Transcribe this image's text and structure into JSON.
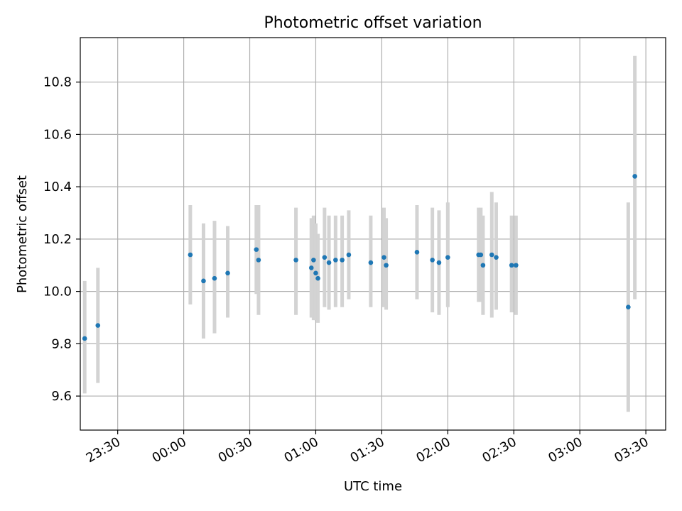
{
  "chart_data": {
    "type": "scatter",
    "title": "Photometric offset variation",
    "xlabel": "UTC time",
    "ylabel": "Photometric offset",
    "grid": true,
    "legend": "none",
    "x_unit": "time of day (HH:MM, UTC), crossing midnight",
    "xlim": [
      "23:13",
      "03:39"
    ],
    "ylim": [
      9.47,
      10.97
    ],
    "x_ticks": [
      "23:30",
      "00:00",
      "00:30",
      "01:00",
      "01:30",
      "02:00",
      "02:30",
      "03:00",
      "03:30"
    ],
    "y_ticks": [
      9.6,
      9.8,
      10.0,
      10.2,
      10.4,
      10.6,
      10.8
    ],
    "y_tick_labels": [
      "9.6",
      "9.8",
      "10.0",
      "10.2",
      "10.4",
      "10.6",
      "10.8"
    ],
    "colors": {
      "point": "#1f77b4",
      "errorbar": "#d3d3d3",
      "grid": "#b0b0b0"
    },
    "series": [
      {
        "points": [
          {
            "t": "23:15",
            "y": 9.82,
            "ylo": 9.61,
            "yhi": 10.04
          },
          {
            "t": "23:21",
            "y": 9.87,
            "ylo": 9.65,
            "yhi": 10.09
          },
          {
            "t": "00:03",
            "y": 10.14,
            "ylo": 9.95,
            "yhi": 10.33
          },
          {
            "t": "00:09",
            "y": 10.04,
            "ylo": 9.82,
            "yhi": 10.26
          },
          {
            "t": "00:14",
            "y": 10.05,
            "ylo": 9.84,
            "yhi": 10.27
          },
          {
            "t": "00:20",
            "y": 10.07,
            "ylo": 9.9,
            "yhi": 10.25
          },
          {
            "t": "00:33",
            "y": 10.16,
            "ylo": 9.99,
            "yhi": 10.33
          },
          {
            "t": "00:34",
            "y": 10.12,
            "ylo": 9.91,
            "yhi": 10.33
          },
          {
            "t": "00:51",
            "y": 10.12,
            "ylo": 9.91,
            "yhi": 10.32
          },
          {
            "t": "00:58",
            "y": 10.09,
            "ylo": 9.9,
            "yhi": 10.28
          },
          {
            "t": "00:59",
            "y": 10.12,
            "ylo": 9.89,
            "yhi": 10.29
          },
          {
            "t": "01:00",
            "y": 10.07,
            "ylo": 9.89,
            "yhi": 10.26
          },
          {
            "t": "01:01",
            "y": 10.05,
            "ylo": 9.88,
            "yhi": 10.22
          },
          {
            "t": "01:04",
            "y": 10.13,
            "ylo": 9.94,
            "yhi": 10.32
          },
          {
            "t": "01:06",
            "y": 10.11,
            "ylo": 9.93,
            "yhi": 10.29
          },
          {
            "t": "01:09",
            "y": 10.12,
            "ylo": 9.94,
            "yhi": 10.29
          },
          {
            "t": "01:12",
            "y": 10.12,
            "ylo": 9.94,
            "yhi": 10.29
          },
          {
            "t": "01:15",
            "y": 10.14,
            "ylo": 9.97,
            "yhi": 10.31
          },
          {
            "t": "01:25",
            "y": 10.11,
            "ylo": 9.94,
            "yhi": 10.29
          },
          {
            "t": "01:31",
            "y": 10.13,
            "ylo": 9.94,
            "yhi": 10.32
          },
          {
            "t": "01:32",
            "y": 10.1,
            "ylo": 9.93,
            "yhi": 10.28
          },
          {
            "t": "01:46",
            "y": 10.15,
            "ylo": 9.97,
            "yhi": 10.33
          },
          {
            "t": "01:53",
            "y": 10.12,
            "ylo": 9.92,
            "yhi": 10.32
          },
          {
            "t": "01:56",
            "y": 10.11,
            "ylo": 9.91,
            "yhi": 10.31
          },
          {
            "t": "02:00",
            "y": 10.13,
            "ylo": 9.94,
            "yhi": 10.34
          },
          {
            "t": "02:14",
            "y": 10.14,
            "ylo": 9.96,
            "yhi": 10.32
          },
          {
            "t": "02:15",
            "y": 10.14,
            "ylo": 9.96,
            "yhi": 10.32
          },
          {
            "t": "02:16",
            "y": 10.1,
            "ylo": 9.91,
            "yhi": 10.29
          },
          {
            "t": "02:20",
            "y": 10.14,
            "ylo": 9.9,
            "yhi": 10.38
          },
          {
            "t": "02:22",
            "y": 10.13,
            "ylo": 9.93,
            "yhi": 10.34
          },
          {
            "t": "02:29",
            "y": 10.1,
            "ylo": 9.92,
            "yhi": 10.29
          },
          {
            "t": "02:31",
            "y": 10.1,
            "ylo": 9.91,
            "yhi": 10.29
          },
          {
            "t": "03:22",
            "y": 9.94,
            "ylo": 9.54,
            "yhi": 10.34
          },
          {
            "t": "03:25",
            "y": 10.44,
            "ylo": 9.97,
            "yhi": 10.9
          }
        ]
      }
    ]
  }
}
